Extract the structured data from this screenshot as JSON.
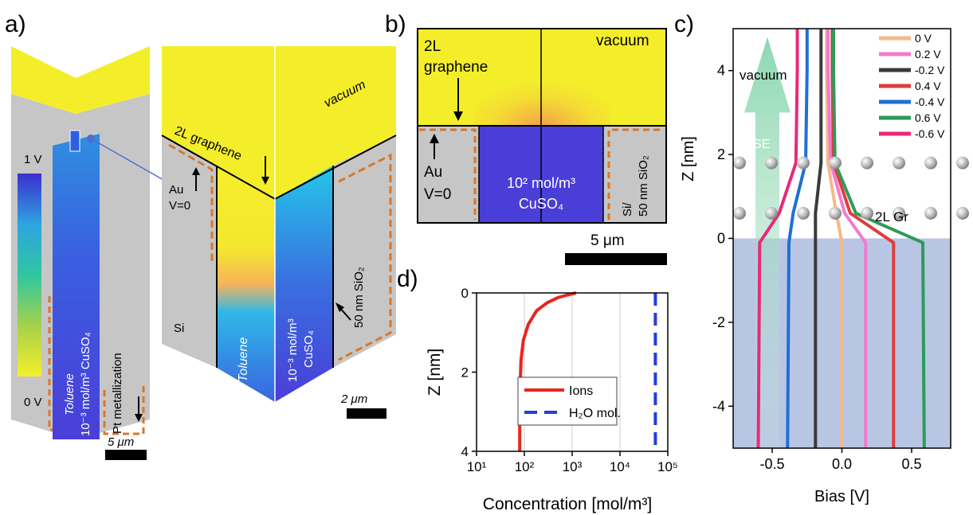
{
  "panels": {
    "a": {
      "label": "a)",
      "scale_bar_left": "5 μm",
      "scale_bar_right": "2 μm",
      "colorbar_top": "1 V",
      "colorbar_bottom": "0 V",
      "toluene": "Toluene",
      "cuso4_tall": "10⁻³ mol/m³ CuSO₄",
      "pt": "Pt metallization",
      "graphene": "2L graphene",
      "vacuum": "vacuum",
      "au": "Au",
      "v0": "V=0",
      "si": "Si",
      "cuso4_line1": "10⁻³ mol/m³",
      "cuso4_line2": "CuSO₄",
      "sio2": "50 nm SiO₂"
    },
    "b": {
      "label": "b)",
      "graphene_line1": "2L",
      "graphene_line2": "graphene",
      "vacuum": "vacuum",
      "au": "Au",
      "v0": "V=0",
      "cuso4_line1": "10² mol/m³",
      "cuso4_line2": "CuSO₄",
      "si_line1": "Si/",
      "si_line2": "50 nm SiO₂",
      "scale_bar": "5 μm"
    },
    "c": {
      "label": "c)",
      "vacuum": "vacuum",
      "se": "SE",
      "gr": "2L Gr"
    },
    "d": {
      "label": "d)"
    }
  },
  "colors": {
    "yellow": "#f4ee2a",
    "grey": "#c6c6c6",
    "blue": "#4a3ed8",
    "orange": "#d9772a",
    "electrolyte": "#b8c6e4"
  },
  "chart_data": [
    {
      "id": "c",
      "type": "line",
      "xlabel": "Bias [V]",
      "ylabel": "Z [nm]",
      "xlim": [
        -0.78,
        0.78
      ],
      "ylim": [
        -5,
        5
      ],
      "xticks": [
        -0.5,
        0.0,
        0.5
      ],
      "xtick_labels": [
        "-0.5",
        "0.0",
        "0.5"
      ],
      "yticks": [
        -4,
        -2,
        0,
        2,
        4
      ],
      "yticks_labels": [
        "-4",
        "-2",
        "0",
        "2",
        "4"
      ],
      "legend_position": "top-right",
      "series": [
        {
          "name": "0 V",
          "color": "#f5b98a",
          "x": [
            0.0,
            0.0,
            -0.04,
            -0.1,
            -0.11,
            -0.11
          ],
          "z": [
            -5,
            -0.1,
            0.6,
            1.8,
            4.0,
            5.0
          ]
        },
        {
          "name": "0.2 V",
          "color": "#f27ad0",
          "x": [
            0.17,
            0.17,
            0.02,
            -0.08,
            -0.1,
            -0.1
          ],
          "z": [
            -5,
            -0.1,
            0.6,
            1.8,
            4.0,
            5.0
          ]
        },
        {
          "name": "-0.2 V",
          "color": "#3a3a3a",
          "x": [
            -0.19,
            -0.19,
            -0.19,
            -0.15,
            -0.15,
            -0.15
          ],
          "z": [
            -5,
            -0.1,
            0.6,
            1.8,
            4.0,
            5.0
          ]
        },
        {
          "name": "0.4 V",
          "color": "#e03c3c",
          "x": [
            0.37,
            0.37,
            0.06,
            -0.06,
            -0.07,
            -0.07
          ],
          "z": [
            -5,
            -0.1,
            0.6,
            1.8,
            4.0,
            5.0
          ]
        },
        {
          "name": "-0.4 V",
          "color": "#1f6fd6",
          "x": [
            -0.39,
            -0.38,
            -0.35,
            -0.26,
            -0.25,
            -0.25
          ],
          "z": [
            -5,
            -0.1,
            0.6,
            1.8,
            4.0,
            5.0
          ]
        },
        {
          "name": "0.6 V",
          "color": "#2e9a5a",
          "x": [
            0.59,
            0.58,
            0.1,
            -0.05,
            -0.06,
            -0.06
          ],
          "z": [
            -5,
            -0.1,
            0.6,
            1.8,
            4.0,
            5.0
          ]
        },
        {
          "name": "-0.6 V",
          "color": "#e82a78",
          "x": [
            -0.6,
            -0.59,
            -0.45,
            -0.33,
            -0.32,
            -0.32
          ],
          "z": [
            -5,
            -0.1,
            0.6,
            1.8,
            4.0,
            5.0
          ]
        }
      ]
    },
    {
      "id": "d",
      "type": "line",
      "xlabel": "Concentration [mol/m³]",
      "ylabel": "Z [nm]",
      "xscale": "log",
      "xlim": [
        10,
        100000
      ],
      "ylim": [
        4,
        0
      ],
      "xticks": [
        10,
        100,
        1000,
        10000,
        100000
      ],
      "xtick_labels": [
        "10¹",
        "10²",
        "10³",
        "10⁴",
        "10⁵"
      ],
      "yticks": [
        0,
        2,
        4
      ],
      "ytick_labels": [
        "0",
        "2",
        "4"
      ],
      "grid": true,
      "legend_position": "center",
      "series": [
        {
          "name": "Ions",
          "style": "solid",
          "color": "#e8261e",
          "x": [
            1200,
            800,
            500,
            300,
            180,
            120,
            95,
            85,
            82,
            80,
            80
          ],
          "z": [
            0,
            0.05,
            0.12,
            0.25,
            0.45,
            0.8,
            1.2,
            1.7,
            2.3,
            3.0,
            4.0
          ]
        },
        {
          "name": "H₂O mol.",
          "style": "dashed",
          "color": "#1f3ee0",
          "x": [
            55000,
            55000
          ],
          "z": [
            0,
            4
          ]
        }
      ]
    }
  ]
}
